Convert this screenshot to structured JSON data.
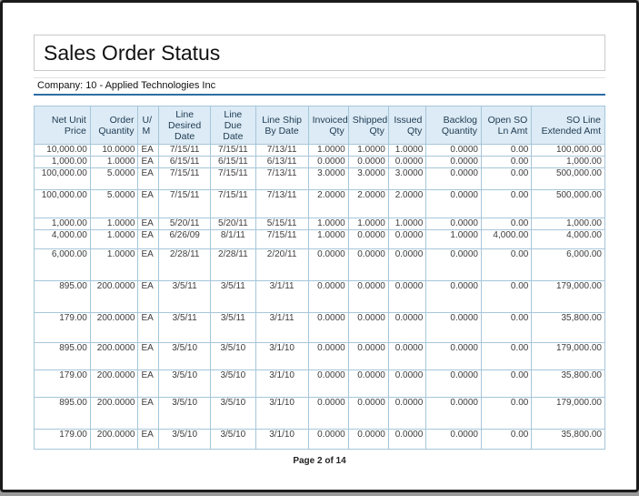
{
  "report": {
    "title": "Sales Order Status",
    "company_line": "Company: 10 - Applied Technologies Inc",
    "page_footer": "Page 2 of 14"
  },
  "table": {
    "columns": [
      "Net Unit\nPrice",
      "Order\nQuantity",
      "U/\nM",
      "Line\nDesired\nDate",
      "Line Due\nDate",
      "Line Ship\nBy Date",
      "Invoiced\nQty",
      "Shipped\nQty",
      "Issued\nQty",
      "Backlog\nQuantity",
      "Open SO\nLn Amt",
      "SO Line\nExtended Amt"
    ],
    "rows": [
      [
        "10,000.00",
        "10.0000",
        "EA",
        "7/15/11",
        "7/15/11",
        "7/13/11",
        "1.0000",
        "1.0000",
        "1.0000",
        "0.0000",
        "0.00",
        "100,000.00"
      ],
      [
        "1,000.00",
        "1.0000",
        "EA",
        "6/15/11",
        "6/15/11",
        "6/13/11",
        "0.0000",
        "0.0000",
        "0.0000",
        "0.0000",
        "0.00",
        "1,000.00"
      ],
      [
        "100,000.00",
        "5.0000",
        "EA",
        "7/15/11",
        "7/15/11",
        "7/13/11",
        "3.0000",
        "3.0000",
        "3.0000",
        "0.0000",
        "0.00",
        "500,000.00"
      ],
      [
        "100,000.00",
        "5.0000",
        "EA",
        "7/15/11",
        "7/15/11",
        "7/13/11",
        "2.0000",
        "2.0000",
        "2.0000",
        "0.0000",
        "0.00",
        "500,000.00"
      ],
      [
        "1,000.00",
        "1.0000",
        "EA",
        "5/20/11",
        "5/20/11",
        "5/15/11",
        "1.0000",
        "1.0000",
        "1.0000",
        "0.0000",
        "0.00",
        "1,000.00"
      ],
      [
        "4,000.00",
        "1.0000",
        "EA",
        "6/26/09",
        "8/1/11",
        "7/15/11",
        "1.0000",
        "0.0000",
        "0.0000",
        "1.0000",
        "4,000.00",
        "4,000.00"
      ],
      [
        "6,000.00",
        "1.0000",
        "EA",
        "2/28/11",
        "2/28/11",
        "2/20/11",
        "0.0000",
        "0.0000",
        "0.0000",
        "0.0000",
        "0.00",
        "6,000.00"
      ],
      [
        "895.00",
        "200.0000",
        "EA",
        "3/5/11",
        "3/5/11",
        "3/1/11",
        "0.0000",
        "0.0000",
        "0.0000",
        "0.0000",
        "0.00",
        "179,000.00"
      ],
      [
        "179.00",
        "200.0000",
        "EA",
        "3/5/11",
        "3/5/11",
        "3/1/11",
        "0.0000",
        "0.0000",
        "0.0000",
        "0.0000",
        "0.00",
        "35,800.00"
      ],
      [
        "895.00",
        "200.0000",
        "EA",
        "3/5/10",
        "3/5/10",
        "3/1/10",
        "0.0000",
        "0.0000",
        "0.0000",
        "0.0000",
        "0.00",
        "179,000.00"
      ],
      [
        "179.00",
        "200.0000",
        "EA",
        "3/5/10",
        "3/5/10",
        "3/1/10",
        "0.0000",
        "0.0000",
        "0.0000",
        "0.0000",
        "0.00",
        "35,800.00"
      ],
      [
        "895.00",
        "200.0000",
        "EA",
        "3/5/10",
        "3/5/10",
        "3/1/10",
        "0.0000",
        "0.0000",
        "0.0000",
        "0.0000",
        "0.00",
        "179,000.00"
      ],
      [
        "179.00",
        "200.0000",
        "EA",
        "3/5/10",
        "3/5/10",
        "3/1/10",
        "0.0000",
        "0.0000",
        "0.0000",
        "0.0000",
        "0.00",
        "35,800.00"
      ]
    ]
  },
  "colors": {
    "accent_rule_blue": "#2e6da4",
    "header_bg": "#dcebf5",
    "header_text": "#1e3a52",
    "table_border": "#a6c6da"
  }
}
